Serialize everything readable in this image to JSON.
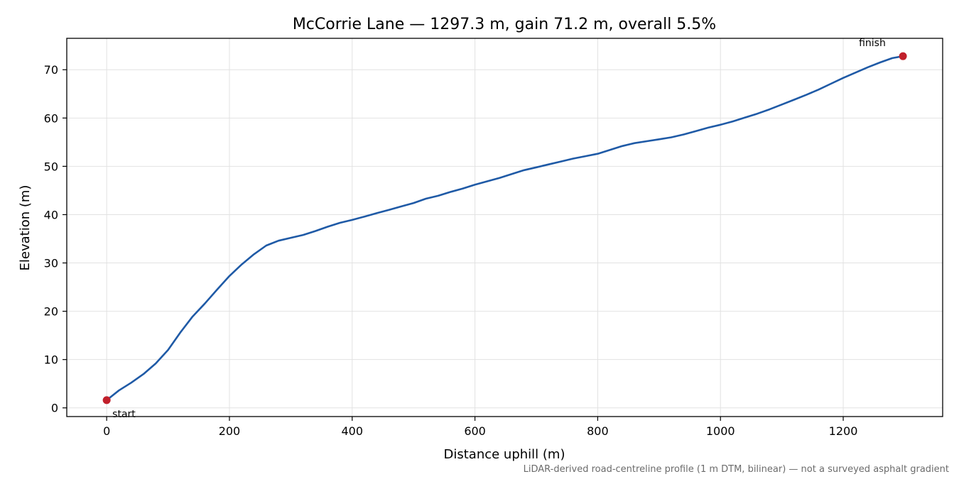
{
  "chart_data": {
    "type": "line",
    "title": "McCorrie Lane — 1297.3 m, gain 71.2 m, overall 5.5%",
    "xlabel": "Distance uphill (m)",
    "ylabel": "Elevation (m)",
    "footnote": "LiDAR-derived road-centreline profile (1 m DTM, bilinear) — not a surveyed asphalt gradient",
    "xlim": [
      -65,
      1362
    ],
    "ylim": [
      -1.8,
      76.5
    ],
    "xticks": [
      0,
      200,
      400,
      600,
      800,
      1000,
      1200
    ],
    "yticks": [
      0,
      10,
      20,
      30,
      40,
      50,
      60,
      70
    ],
    "grid": true,
    "series": [
      {
        "color": "#1f5aa6",
        "x": [
          0,
          20,
          40,
          60,
          80,
          100,
          120,
          140,
          160,
          180,
          200,
          220,
          240,
          260,
          280,
          300,
          320,
          340,
          360,
          380,
          400,
          420,
          440,
          460,
          480,
          500,
          520,
          540,
          560,
          580,
          600,
          620,
          640,
          660,
          680,
          700,
          720,
          740,
          760,
          780,
          800,
          820,
          840,
          860,
          880,
          900,
          920,
          940,
          960,
          980,
          1000,
          1020,
          1040,
          1060,
          1080,
          1100,
          1120,
          1140,
          1160,
          1180,
          1200,
          1220,
          1240,
          1260,
          1280,
          1297.3
        ],
        "y": [
          1.6,
          3.6,
          5.2,
          7.0,
          9.2,
          12.0,
          15.6,
          18.9,
          21.6,
          24.5,
          27.3,
          29.7,
          31.8,
          33.6,
          34.6,
          35.2,
          35.8,
          36.6,
          37.5,
          38.3,
          38.9,
          39.6,
          40.3,
          41.0,
          41.7,
          42.4,
          43.3,
          43.9,
          44.7,
          45.4,
          46.2,
          46.9,
          47.6,
          48.4,
          49.2,
          49.8,
          50.4,
          51.0,
          51.6,
          52.1,
          52.6,
          53.4,
          54.2,
          54.8,
          55.2,
          55.6,
          56.0,
          56.6,
          57.3,
          58.0,
          58.6,
          59.3,
          60.1,
          60.9,
          61.8,
          62.8,
          63.8,
          64.8,
          65.9,
          67.1,
          68.3,
          69.4,
          70.5,
          71.5,
          72.4,
          72.8
        ]
      }
    ],
    "points": [
      {
        "label": "start",
        "x": 0,
        "y": 1.6,
        "color": "#c1202b"
      },
      {
        "label": "finish",
        "x": 1297.3,
        "y": 72.8,
        "color": "#c1202b"
      }
    ]
  }
}
